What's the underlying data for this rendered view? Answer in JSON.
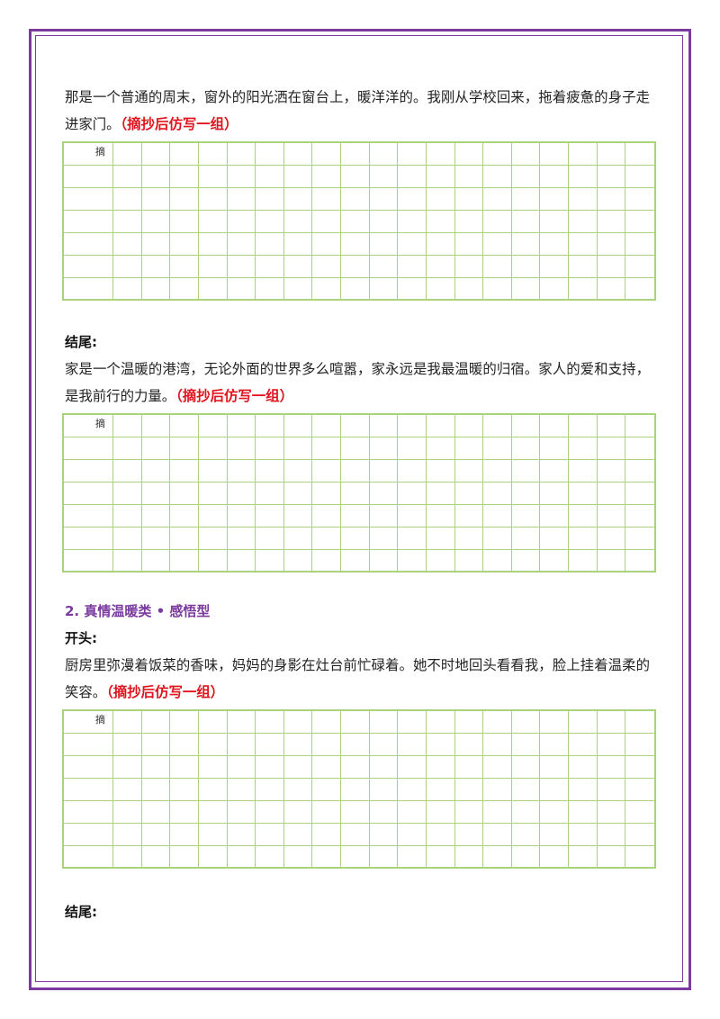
{
  "blocks": [
    {
      "text": "那是一个普通的周末，窗外的阳光洒在窗台上，暖洋洋的。我刚从学校回来，拖着疲惫的身子走进家门。",
      "note": "（摘抄后仿写一组）",
      "grid_label": "摘"
    },
    {
      "label": "结尾:",
      "text": "家是一个温暖的港湾，无论外面的世界多么喧嚣，家永远是我最温暖的归宿。家人的爱和支持，是我前行的力量。",
      "note": "（摘抄后仿写一组）",
      "grid_label": "摘"
    },
    {
      "heading": "2. 真情温暖类 • 感悟型",
      "label": "开头:",
      "text": "厨房里弥漫着饭菜的香味，妈妈的身影在灶台前忙碌着。她不时地回头看看我，脸上挂着温柔的笑容。",
      "note": "（摘抄后仿写一组）",
      "grid_label": "摘"
    },
    {
      "label": "结尾:"
    }
  ]
}
